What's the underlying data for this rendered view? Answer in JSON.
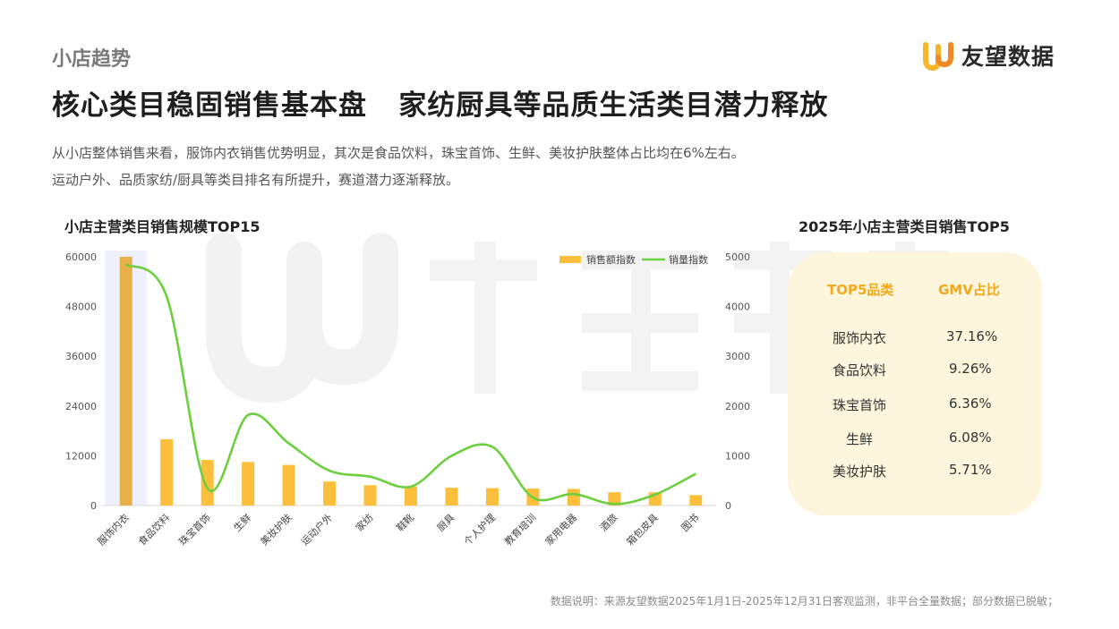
{
  "header": {
    "section_label": "小店趋势",
    "logo_text": "友望数据",
    "headline": "核心类目稳固销售基本盘   家纺厨具等品质生活类目潜力释放",
    "desc_line1": "从小店整体销售来看，服饰内衣销售优势明显，其次是食品饮料，珠宝首饰、生鲜、美妆护肤整体占比均在6%左右。",
    "desc_line2": "运动户外、品质家纺/厨具等类目排名有所提升，赛道潜力逐渐释放。"
  },
  "colors": {
    "bar": "#fbbf3b",
    "bar_highlight": "#e8b04a",
    "line": "#6ccf3f",
    "accent": "#f2a91c",
    "panel": "#fdf6dc"
  },
  "chart_data": {
    "type": "bar",
    "title": "小店主营类目销售规模TOP15",
    "categories": [
      "服饰内衣",
      "食品饮料",
      "珠宝首饰",
      "生鲜",
      "美妆护肤",
      "运动户外",
      "家纺",
      "鞋靴",
      "厨具",
      "个人护理",
      "教育培训",
      "家用电器",
      "酒旅",
      "箱包皮具",
      "图书"
    ],
    "series": [
      {
        "name": "销售额指数",
        "axis": "left",
        "type": "bar",
        "values": [
          60000,
          16000,
          11000,
          10500,
          9800,
          5800,
          4900,
          4600,
          4300,
          4200,
          4100,
          4000,
          3200,
          3200,
          2500
        ]
      },
      {
        "name": "销量指数",
        "axis": "right",
        "type": "line",
        "values": [
          4850,
          4200,
          350,
          1820,
          1250,
          700,
          580,
          380,
          1000,
          1180,
          160,
          230,
          30,
          220,
          640
        ]
      }
    ],
    "y_left": {
      "ylim": [
        0,
        60000
      ],
      "ticks": [
        "0",
        "12000",
        "24000",
        "36000",
        "48000",
        "60000"
      ]
    },
    "y_right": {
      "ylim": [
        0,
        5000
      ],
      "ticks": [
        "0",
        "1000",
        "2000",
        "3000",
        "4000",
        "5000"
      ]
    },
    "highlight_category": "服饰内衣",
    "legend_position": "top-right",
    "grid": false
  },
  "top5": {
    "title": "2025年小店主营类目销售TOP5",
    "col_category": "TOP5品类",
    "col_share": "GMV占比",
    "rows": [
      {
        "category": "服饰内衣",
        "share": "37.16%"
      },
      {
        "category": "食品饮料",
        "share": "9.26%"
      },
      {
        "category": "珠宝首饰",
        "share": "6.36%"
      },
      {
        "category": "生鲜",
        "share": "6.08%"
      },
      {
        "category": "美妆护肤",
        "share": "5.71%"
      }
    ]
  },
  "footnote": "数据说明：来源友望数据2025年1月1日-2025年12月31日客观监测，非平台全量数据；部分数据已脱敏；"
}
